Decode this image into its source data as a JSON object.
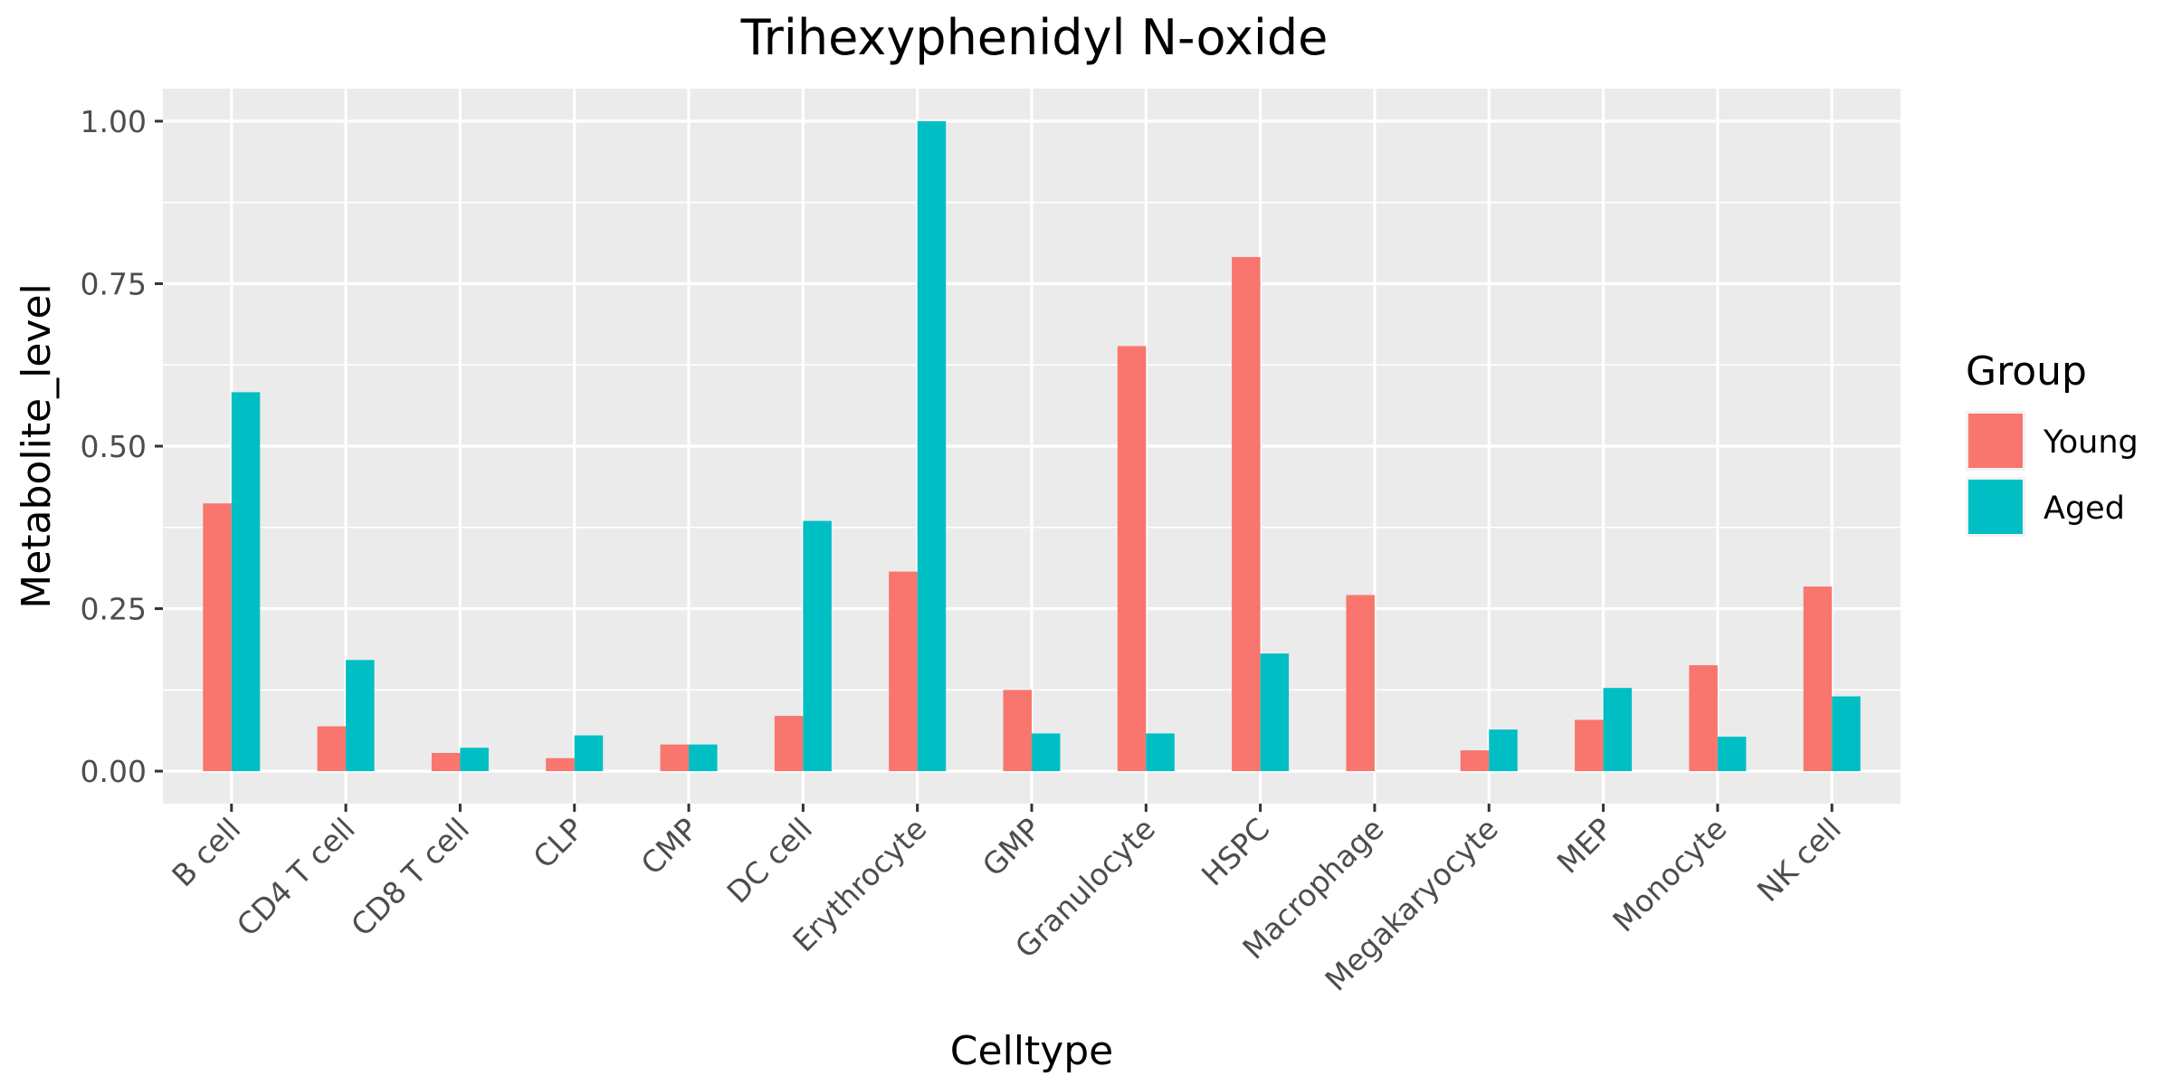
{
  "chart_data": {
    "type": "bar",
    "title": "Trihexyphenidyl N-oxide",
    "xlabel": "Celltype",
    "ylabel": "Metabolite_level",
    "ylim": [
      -0.05,
      1.05
    ],
    "yticks": [
      0.0,
      0.25,
      0.5,
      0.75,
      1.0
    ],
    "ytick_labels": [
      "0.00",
      "0.25",
      "0.50",
      "0.75",
      "1.00"
    ],
    "grid": true,
    "legend": {
      "title": "Group",
      "position": "right"
    },
    "categories": [
      "B cell",
      "CD4 T cell",
      "CD8 T cell",
      "CLP",
      "CMP",
      "DC cell",
      "Erythrocyte",
      "GMP",
      "Granulocyte",
      "HSPC",
      "Macrophage",
      "Megakaryocyte",
      "MEP",
      "Monocyte",
      "NK cell"
    ],
    "series": [
      {
        "name": "Young",
        "color": "#F8766D",
        "values": [
          0.412,
          0.069,
          0.028,
          0.02,
          0.041,
          0.085,
          0.307,
          0.125,
          0.654,
          0.791,
          0.271,
          0.032,
          0.079,
          0.163,
          0.284
        ]
      },
      {
        "name": "Aged",
        "color": "#00BFC4",
        "values": [
          0.583,
          0.171,
          0.036,
          0.055,
          0.041,
          0.385,
          1.0,
          0.058,
          0.058,
          0.181,
          0.0,
          0.064,
          0.128,
          0.053,
          0.115
        ]
      }
    ]
  }
}
